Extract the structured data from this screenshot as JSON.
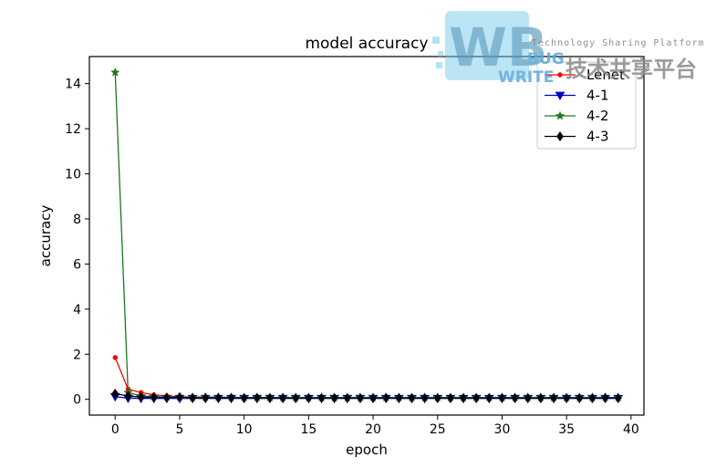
{
  "chart_data": {
    "type": "line",
    "title": "model accuracy",
    "xlabel": "epoch",
    "ylabel": "accuracy",
    "xlim": [
      -2,
      41
    ],
    "ylim": [
      -0.7,
      15.2
    ],
    "xticks": [
      0,
      5,
      10,
      15,
      20,
      25,
      30,
      35,
      40
    ],
    "yticks": [
      0,
      2,
      4,
      6,
      8,
      10,
      12,
      14
    ],
    "grid": false,
    "legend_position": "top-right",
    "series": [
      {
        "name": "Lenet",
        "color": "#ff0000",
        "marker": "dot",
        "x": [
          0,
          1,
          2,
          3,
          4,
          5,
          6,
          7,
          8,
          9,
          10,
          11,
          12,
          13,
          14,
          15,
          16,
          17,
          18,
          19,
          20,
          21,
          22,
          23,
          24,
          25,
          26,
          27,
          28,
          29,
          30,
          31,
          32,
          33,
          34,
          35,
          36,
          37,
          38,
          39
        ],
        "y": [
          1.85,
          0.45,
          0.3,
          0.2,
          0.15,
          0.12,
          0.1,
          0.1,
          0.09,
          0.09,
          0.08,
          0.08,
          0.08,
          0.08,
          0.07,
          0.07,
          0.07,
          0.07,
          0.07,
          0.07,
          0.07,
          0.07,
          0.07,
          0.07,
          0.07,
          0.07,
          0.07,
          0.07,
          0.07,
          0.07,
          0.07,
          0.07,
          0.07,
          0.07,
          0.07,
          0.07,
          0.07,
          0.07,
          0.07,
          0.07
        ]
      },
      {
        "name": "4-1",
        "color": "#0000cc",
        "marker": "triangle-down",
        "x": [
          0,
          1,
          2,
          3,
          4,
          5,
          6,
          7,
          8,
          9,
          10,
          11,
          12,
          13,
          14,
          15,
          16,
          17,
          18,
          19,
          20,
          21,
          22,
          23,
          24,
          25,
          26,
          27,
          28,
          29,
          30,
          31,
          32,
          33,
          34,
          35,
          36,
          37,
          38,
          39
        ],
        "y": [
          0.12,
          0.05,
          0.04,
          0.04,
          0.04,
          0.04,
          0.04,
          0.04,
          0.04,
          0.04,
          0.04,
          0.04,
          0.04,
          0.04,
          0.04,
          0.04,
          0.04,
          0.04,
          0.04,
          0.04,
          0.04,
          0.04,
          0.04,
          0.04,
          0.04,
          0.04,
          0.04,
          0.04,
          0.04,
          0.04,
          0.04,
          0.04,
          0.04,
          0.04,
          0.04,
          0.04,
          0.04,
          0.04,
          0.04,
          0.04
        ]
      },
      {
        "name": "4-2",
        "color": "#1a7a1a",
        "marker": "star",
        "x": [
          0,
          1,
          2,
          3,
          4,
          5,
          6,
          7,
          8,
          9,
          10,
          11,
          12,
          13,
          14,
          15,
          16,
          17,
          18,
          19,
          20,
          21,
          22,
          23,
          24,
          25,
          26,
          27,
          28,
          29,
          30,
          31,
          32,
          33,
          34,
          35,
          36,
          37,
          38,
          39
        ],
        "y": [
          14.5,
          0.3,
          0.15,
          0.12,
          0.1,
          0.1,
          0.09,
          0.09,
          0.09,
          0.08,
          0.08,
          0.08,
          0.08,
          0.08,
          0.08,
          0.08,
          0.08,
          0.08,
          0.08,
          0.08,
          0.08,
          0.08,
          0.08,
          0.08,
          0.08,
          0.08,
          0.08,
          0.08,
          0.08,
          0.08,
          0.08,
          0.08,
          0.08,
          0.08,
          0.08,
          0.08,
          0.08,
          0.08,
          0.08,
          0.08
        ]
      },
      {
        "name": "4-3",
        "color": "#000000",
        "marker": "diamond",
        "x": [
          0,
          1,
          2,
          3,
          4,
          5,
          6,
          7,
          8,
          9,
          10,
          11,
          12,
          13,
          14,
          15,
          16,
          17,
          18,
          19,
          20,
          21,
          22,
          23,
          24,
          25,
          26,
          27,
          28,
          29,
          30,
          31,
          32,
          33,
          34,
          35,
          36,
          37,
          38,
          39
        ],
        "y": [
          0.25,
          0.15,
          0.1,
          0.09,
          0.08,
          0.1,
          0.07,
          0.07,
          0.07,
          0.07,
          0.06,
          0.07,
          0.06,
          0.06,
          0.06,
          0.06,
          0.06,
          0.06,
          0.06,
          0.06,
          0.06,
          0.07,
          0.06,
          0.06,
          0.06,
          0.06,
          0.06,
          0.06,
          0.06,
          0.06,
          0.06,
          0.06,
          0.06,
          0.06,
          0.06,
          0.06,
          0.06,
          0.06,
          0.07,
          0.06
        ]
      }
    ]
  },
  "watermark": {
    "logo_main": "WB",
    "logo_bug": "BUG",
    "logo_write": "WRITE",
    "tagline": "Technology Sharing Platform",
    "cn_text": "技术共享平台",
    "logo_color": "#6ec6e8"
  }
}
